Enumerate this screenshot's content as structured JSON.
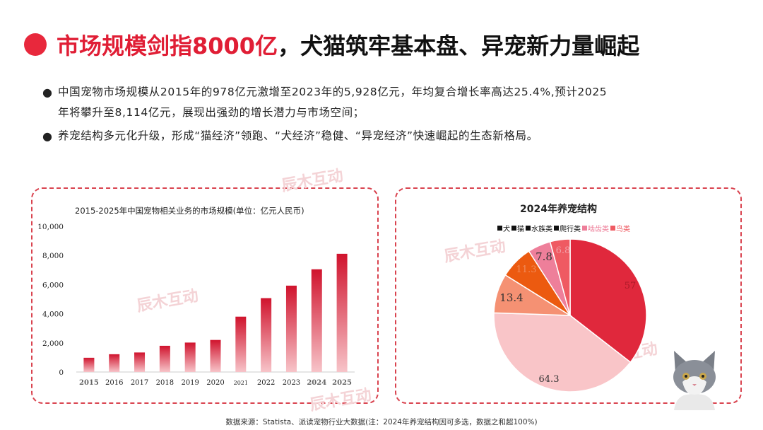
{
  "header": {
    "title_red": "市场规模剑指8000亿",
    "title_black": "，犬猫筑牢基本盘、异宠新力量崛起"
  },
  "bullets": [
    {
      "marker": "●",
      "text": "中国宠物市场规模从2015年的978亿元激增至2023年的5,928亿元，年均复合增长率高达25.4%,预计2025"
    },
    {
      "marker": "",
      "text": "年将攀升至8,114亿元，展现出强劲的增长潜力与市场空间；"
    },
    {
      "marker": "●",
      "text": "养宠结构多元化升级，形成“猫经济”领跑、“犬经济”稳健、“异宠经济”快速崛起的生态新格局。"
    }
  ],
  "watermark": "辰木互动",
  "colors": {
    "accent": "#e01e35",
    "panel_border": "#d9434f"
  },
  "chart_data": [
    {
      "type": "bar",
      "title": "2015-2025年中国宠物相关业务的市场规模(单位：亿元人民币)",
      "categories": [
        "2015",
        "2016",
        "2017",
        "2018",
        "2019",
        "2020",
        "2021",
        "2022",
        "2023",
        "2024",
        "2025"
      ],
      "values": [
        978,
        1220,
        1340,
        1800,
        2020,
        2200,
        3800,
        5070,
        5928,
        7050,
        8114
      ],
      "ylim": [
        0,
        10000
      ],
      "yticks": [
        "10,000",
        "8,000",
        "6,000",
        "4,000",
        "2,000",
        "0"
      ],
      "grid": false
    },
    {
      "type": "pie",
      "title": "2024年养宠结构",
      "legend_position": "top",
      "slices": [
        {
          "label": "犬",
          "value": 57,
          "color": "#e0283c"
        },
        {
          "label": "猫",
          "value": 64.3,
          "color": "#f9c5c8"
        },
        {
          "label": "水族类",
          "value": 13.4,
          "color": "#f59173"
        },
        {
          "label": "爬行类",
          "value": 11.3,
          "color": "#ec5a10"
        },
        {
          "label": "啮齿类",
          "value": 7.8,
          "color": "#ee7f9a"
        },
        {
          "label": "鸟类",
          "value": 6.8,
          "color": "#ef5a62"
        }
      ]
    }
  ],
  "source": "数据来源：Statista、派读宠物行业大数据(注：2024年养宠结构因可多选，数据之和超100%)"
}
